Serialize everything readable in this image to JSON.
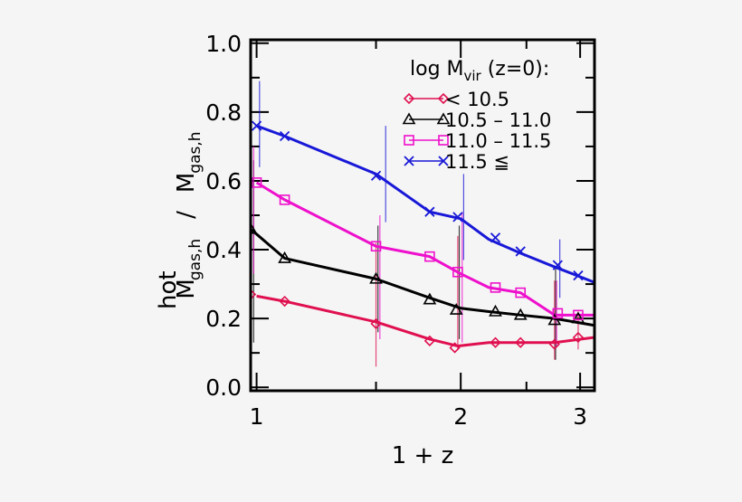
{
  "chart_data": {
    "type": "line",
    "xlabel": "1 + z",
    "ylabel": {
      "main": "M",
      "num_sup": "hot",
      "num_sub": "gas,h",
      "slash": "/",
      "den_main": "M",
      "den_sub": "gas,h"
    },
    "xscale": "log",
    "xlim": [
      0.98,
      3.15
    ],
    "ylim": [
      -0.01,
      1.01
    ],
    "xticks": [
      {
        "value": 1,
        "label": "1"
      },
      {
        "value": 2,
        "label": "2"
      },
      {
        "value": 3,
        "label": "3"
      }
    ],
    "xticks_minor": [
      1.5,
      2.5
    ],
    "yticks": [
      {
        "value": 0.0,
        "label": "0.0"
      },
      {
        "value": 0.2,
        "label": "0.2"
      },
      {
        "value": 0.4,
        "label": "0.4"
      },
      {
        "value": 0.6,
        "label": "0.6"
      },
      {
        "value": 0.8,
        "label": "0.8"
      },
      {
        "value": 1.0,
        "label": "1.0"
      }
    ],
    "yticks_minor": [
      0.1,
      0.3,
      0.5,
      0.7,
      0.9
    ],
    "grid": false,
    "legend": {
      "placement": "top-right",
      "title": {
        "main": "log M",
        "sub": "vir",
        "after": " (z=0):"
      },
      "entries": [
        {
          "label": "<  10.5",
          "series": 0
        },
        {
          "label": "10.5  –  11.0",
          "series": 1
        },
        {
          "label": "11.0  –  11.5",
          "series": 2
        },
        {
          "label": "11.5  ≦",
          "series": 3
        }
      ]
    },
    "series": [
      {
        "label": "< 10.5",
        "color": "#e01050",
        "marker": "diamond",
        "line_x": [
          1.0,
          1.1,
          1.5,
          1.8,
          1.98,
          2.2,
          2.45,
          2.75,
          3.15
        ],
        "line_y": [
          0.265,
          0.25,
          0.19,
          0.14,
          0.12,
          0.13,
          0.13,
          0.13,
          0.145
        ],
        "marker_x": [
          0.98,
          1.1,
          1.5,
          1.8,
          1.96,
          2.25,
          2.45,
          2.75,
          2.98
        ],
        "marker_y": [
          0.27,
          0.25,
          0.185,
          0.135,
          0.115,
          0.13,
          0.13,
          0.125,
          0.145
        ],
        "err_x": [
          0.98,
          1.5,
          1.98,
          2.75,
          2.98
        ],
        "err_low": [
          0.07,
          0.06,
          0.11,
          0.08,
          0.11
        ],
        "err_high": [
          0.56,
          0.42,
          0.44,
          0.31,
          0.22
        ]
      },
      {
        "label": "10.5 – 11.0",
        "color": "#000000",
        "marker": "triangle",
        "line_x": [
          0.98,
          1.1,
          1.5,
          1.8,
          2.0,
          2.2,
          2.45,
          2.75,
          3.15
        ],
        "line_y": [
          0.46,
          0.375,
          0.315,
          0.26,
          0.23,
          0.22,
          0.21,
          0.2,
          0.18
        ],
        "marker_x": [
          0.98,
          1.1,
          1.5,
          1.8,
          1.97,
          2.25,
          2.45,
          2.75,
          2.98
        ],
        "marker_y": [
          0.46,
          0.375,
          0.315,
          0.255,
          0.225,
          0.22,
          0.21,
          0.195,
          0.2
        ],
        "err_x": [
          0.99,
          1.51,
          1.99,
          2.76
        ],
        "err_low": [
          0.13,
          0.16,
          0.14,
          0.08
        ],
        "err_high": [
          0.66,
          0.47,
          0.47,
          0.35
        ]
      },
      {
        "label": "11.0 – 11.5",
        "color": "#ee10cc",
        "marker": "square",
        "line_x": [
          1.0,
          1.1,
          1.5,
          1.8,
          2.0,
          2.2,
          2.45,
          2.75,
          3.15
        ],
        "line_y": [
          0.595,
          0.545,
          0.41,
          0.38,
          0.33,
          0.29,
          0.275,
          0.21,
          0.21
        ],
        "marker_x": [
          1.0,
          1.1,
          1.5,
          1.8,
          1.98,
          2.25,
          2.45,
          2.78,
          2.98
        ],
        "marker_y": [
          0.595,
          0.545,
          0.41,
          0.38,
          0.335,
          0.29,
          0.275,
          0.215,
          0.21
        ],
        "err_x": [
          0.99,
          1.52,
          2.01,
          2.77
        ],
        "err_low": [
          0.33,
          0.14,
          0.13,
          0.12
        ],
        "err_high": [
          0.7,
          0.5,
          0.51,
          0.31
        ]
      },
      {
        "label": "11.5 ≤",
        "color": "#1818d8",
        "marker": "x",
        "line_x": [
          1.0,
          1.1,
          1.5,
          1.8,
          2.0,
          2.2,
          2.45,
          2.75,
          3.15
        ],
        "line_y": [
          0.76,
          0.73,
          0.62,
          0.51,
          0.49,
          0.43,
          0.39,
          0.35,
          0.305
        ],
        "marker_x": [
          1.0,
          1.1,
          1.5,
          1.8,
          1.98,
          2.25,
          2.45,
          2.78,
          2.98
        ],
        "marker_y": [
          0.76,
          0.73,
          0.615,
          0.51,
          0.495,
          0.435,
          0.395,
          0.355,
          0.325
        ],
        "err_x": [
          1.01,
          1.55,
          2.02,
          2.8
        ],
        "err_low": [
          0.64,
          0.48,
          0.37,
          0.26
        ],
        "err_high": [
          0.89,
          0.76,
          0.62,
          0.43
        ]
      }
    ]
  }
}
